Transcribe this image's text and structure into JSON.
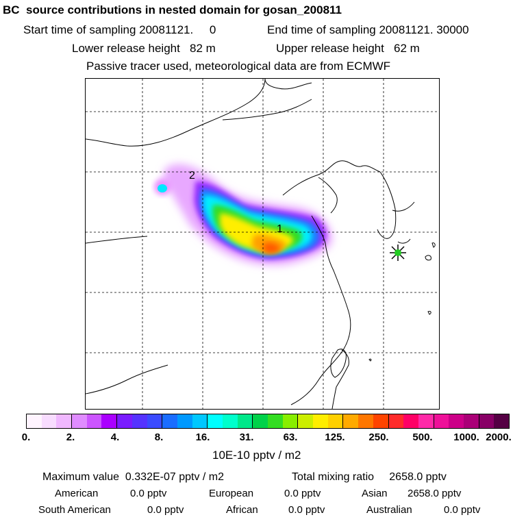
{
  "title": "BC  source contributions in nested domain for gosan_200811",
  "sampling": {
    "start": "Start time of sampling 20081121.     0",
    "end": "End time of sampling 20081121. 30000"
  },
  "release": {
    "lower": "Lower release height   82 m",
    "upper": "Upper release height   62 m"
  },
  "tracer_note": "Passive tracer used, meteorological data are from ECMWF",
  "map": {
    "labels": {
      "one": "1",
      "two": "2"
    },
    "receptor_icon": "star-marker-icon",
    "colors": {
      "land": "#000000",
      "grid": "#000000",
      "plume_low": "#f4d6ff",
      "plume_mid": "#00ffff",
      "plume_high": "#ffd000"
    }
  },
  "colorbar": {
    "colors": [
      "#fff4ff",
      "#f8dcff",
      "#f0b8ff",
      "#e08cff",
      "#cc55ff",
      "#aa00ff",
      "#7a1cff",
      "#5533ff",
      "#3b4bff",
      "#1a6dff",
      "#0099ff",
      "#00c8ff",
      "#00ffff",
      "#00ffcc",
      "#00e88a",
      "#00d24a",
      "#33dd22",
      "#88ee00",
      "#ccee00",
      "#ffee00",
      "#ffd000",
      "#ffaa00",
      "#ff7700",
      "#ff4400",
      "#ff2b2b",
      "#ff0066",
      "#ff2aa8",
      "#ee1199",
      "#cc0088",
      "#aa0077",
      "#880066",
      "#550044"
    ],
    "ticks": [
      "0.",
      "2.",
      "4.",
      "8.",
      "16.",
      "31.",
      "63.",
      "125.",
      "250.",
      "500.",
      "1000.",
      "2000."
    ],
    "unit": "10E-10 pptv / m2"
  },
  "stats": {
    "maximum": "Maximum value  0.332E-07 pptv / m2",
    "total": "Total mixing ratio     2658.0 pptv",
    "american_label": "American",
    "american_value": "0.0 pptv",
    "european_label": "European",
    "european_value": "0.0 pptv",
    "asian_label": "Asian",
    "asian_value": "2658.0 pptv",
    "south_american_label": "South American",
    "south_american_value": "0.0 pptv",
    "african_label": "African",
    "african_value": "0.0 pptv",
    "australian_label": "Australian",
    "australian_value": "0.0 pptv"
  }
}
